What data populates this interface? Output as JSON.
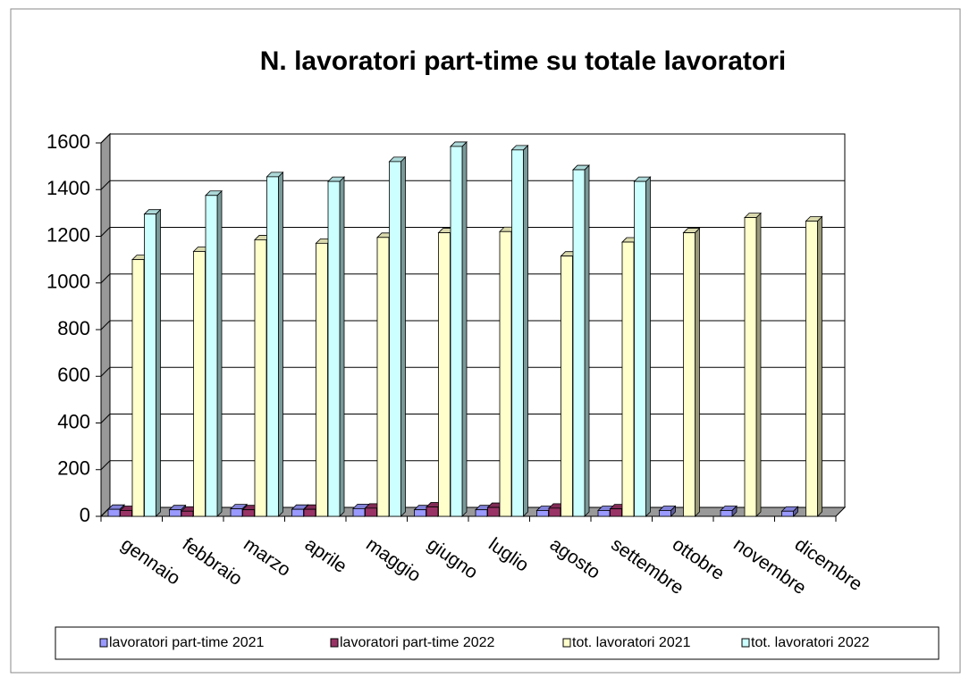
{
  "chart_data": {
    "type": "bar3d",
    "title": "N. lavoratori part-time su totale lavoratori",
    "categories": [
      "gennaio",
      "febbraio",
      "marzo",
      "aprile",
      "maggio",
      "giugno",
      "luglio",
      "agosto",
      "settembre",
      "ottobre",
      "novembre",
      "dicembre"
    ],
    "series": [
      {
        "name": "lavoratori part-time 2021",
        "color": "#9999ff",
        "values": [
          30,
          28,
          32,
          30,
          33,
          28,
          28,
          25,
          25,
          25,
          25,
          22
        ]
      },
      {
        "name": "lavoratori part-time 2022",
        "color": "#993366",
        "values": [
          25,
          22,
          28,
          30,
          35,
          40,
          38,
          35,
          32,
          null,
          null,
          null
        ]
      },
      {
        "name": "tot. lavoratori 2021",
        "color": "#ffffcc",
        "values": [
          1100,
          1135,
          1185,
          1170,
          1195,
          1215,
          1220,
          1115,
          1175,
          1215,
          1280,
          1265
        ]
      },
      {
        "name": "tot. lavoratori 2022",
        "color": "#ccffff",
        "values": [
          1295,
          1375,
          1455,
          1435,
          1520,
          1585,
          1570,
          1485,
          1435,
          null,
          null,
          null
        ]
      }
    ],
    "ylim": [
      0,
      1600
    ],
    "yticks": [
      0,
      200,
      400,
      600,
      800,
      1000,
      1200,
      1400,
      1600
    ],
    "grid": true
  }
}
